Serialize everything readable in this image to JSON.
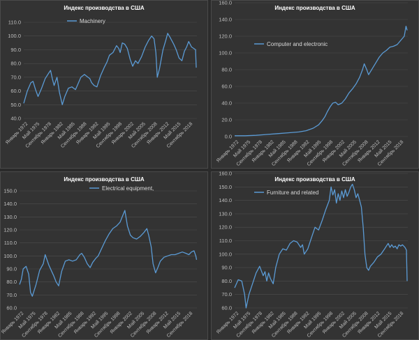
{
  "colors": {
    "background": "#2b2b2b",
    "panel": "#333333",
    "series": "#5b9bd5"
  },
  "chart_data": [
    {
      "type": "line",
      "title": "Индекс производства в США",
      "series": [
        {
          "name": "Machinery"
        }
      ],
      "ylim": [
        40,
        110
      ],
      "y_ticks": [
        "40.0",
        "50.0",
        "60.0",
        "70.0",
        "80.0",
        "90.0",
        "100.0",
        "110.0"
      ],
      "x_labels": [
        "Январь 1972",
        "Май 1975",
        "Сентябрь 1978",
        "Январь 1982",
        "Май 1985",
        "Сентябрь 1988",
        "Январь 1992",
        "Май 1995",
        "Сентябрь 1998",
        "Январь 2002",
        "Май 2005",
        "Сентябрь 2008",
        "Январь 2012",
        "Май 2015",
        "Сентябрь 2018"
      ],
      "x": [
        1972.0,
        1973.0,
        1974.0,
        1974.6,
        1975.3,
        1976.0,
        1977.0,
        1978.0,
        1979.0,
        1979.5,
        1980.0,
        1980.5,
        1981.3,
        1982.0,
        1982.8,
        1983.5,
        1984.5,
        1985.5,
        1986.5,
        1987.0,
        1988.0,
        1989.0,
        1990.0,
        1990.5,
        1991.0,
        1991.7,
        1992.5,
        1993.5,
        1994.5,
        1995.3,
        1996.0,
        1997.0,
        1998.0,
        1998.6,
        1999.0,
        1999.6,
        2000.3,
        2001.0,
        2001.8,
        2002.5,
        2003.3,
        2004.0,
        2005.0,
        2006.0,
        2007.0,
        2007.8,
        2008.5,
        2009.0,
        2009.4,
        2010.0,
        2011.0,
        2011.8,
        2012.3,
        2013.0,
        2014.0,
        2014.7,
        2015.5,
        2016.3,
        2017.0,
        2017.6,
        2018.2,
        2019.0,
        2019.6,
        2020.1,
        2020.3
      ],
      "values": [
        51,
        60,
        66,
        67,
        61,
        56,
        62,
        69,
        73,
        75,
        69,
        64,
        70,
        59,
        50,
        56,
        62,
        63,
        61,
        64,
        70,
        72,
        70,
        69,
        66,
        64,
        63,
        71,
        77,
        81,
        86,
        88,
        93,
        91,
        88,
        95,
        94,
        91,
        83,
        78,
        82,
        80,
        85,
        92,
        97,
        100,
        98,
        88,
        70,
        76,
        90,
        97,
        102,
        99,
        94,
        90,
        84,
        82,
        89,
        92,
        96,
        92,
        91,
        90,
        77
      ]
    },
    {
      "type": "line",
      "title": "Индекс производства в США",
      "series": [
        {
          "name": "Computer and electronic"
        }
      ],
      "ylim": [
        0,
        160
      ],
      "y_ticks": [
        "0.0",
        "20.0",
        "40.0",
        "60.0",
        "80.0",
        "100.0",
        "120.0",
        "140.0",
        "160.0"
      ],
      "x_labels": [
        "Январь 1972",
        "Май 1975",
        "Сентябрь 1978",
        "Январь 1982",
        "Май 1985",
        "Сентябрь 1988",
        "Январь 1992",
        "Май 1995",
        "Сентябрь 1998",
        "Январь 2002",
        "Май 2005",
        "Сентябрь 2008",
        "Январь 2012",
        "Май 2015",
        "Сентябрь 2018"
      ],
      "x": [
        1972,
        1975,
        1978,
        1981,
        1984,
        1987,
        1990,
        1992,
        1994,
        1995.5,
        1996.5,
        1997.3,
        1998,
        1998.8,
        1999.5,
        2000.3,
        2001,
        2002,
        2003,
        2004,
        2005,
        2006,
        2007,
        2007.8,
        2008.3,
        2009,
        2009.5,
        2010.5,
        2011.5,
        2012.5,
        2013.5,
        2014.5,
        2015.5,
        2016.5,
        2017.5,
        2018.5,
        2019.5,
        2020,
        2020.3
      ],
      "values": [
        1,
        1,
        1.5,
        2.5,
        3.5,
        4.5,
        5.5,
        7,
        10,
        14,
        19,
        24,
        30,
        36,
        40,
        41,
        38,
        40,
        45,
        52,
        57,
        63,
        71,
        80,
        87,
        80,
        74,
        81,
        88,
        95,
        100,
        103,
        107,
        108,
        110,
        115,
        120,
        132,
        127
      ]
    },
    {
      "type": "line",
      "title": "Индекс производства в США",
      "series": [
        {
          "name": "Electrical equipment,"
        }
      ],
      "ylim": [
        60,
        150
      ],
      "y_ticks": [
        "60.0",
        "70.0",
        "80.0",
        "90.0",
        "100.0",
        "110.0",
        "120.0",
        "130.0",
        "140.0",
        "150.0"
      ],
      "x_labels": [
        "Январь 1972",
        "Май 1975",
        "Сентябрь 1978",
        "Январь 1982",
        "Май 1985",
        "Сентябрь 1988",
        "Январь 1992",
        "Май 1995",
        "Сентябрь 1998",
        "Январь 2002",
        "Май 2005",
        "Сентябрь 2008",
        "Январь 2012",
        "Май 2015",
        "Сентябрь 2018"
      ],
      "x": [
        1972.0,
        1972.5,
        1973.0,
        1973.8,
        1974.5,
        1975.0,
        1975.5,
        1976.5,
        1977.5,
        1978.5,
        1979.0,
        1979.5,
        1980.0,
        1980.8,
        1981.3,
        1982.0,
        1982.7,
        1983.5,
        1984.5,
        1985.5,
        1986.5,
        1987.5,
        1988.5,
        1989.0,
        1989.7,
        1990.5,
        1991.3,
        1992.0,
        1992.8,
        1993.5,
        1994.5,
        1995.5,
        1996.5,
        1997.5,
        1998.5,
        1999.5,
        2000.2,
        2000.8,
        2001.5,
        2002.3,
        2003.0,
        2004.0,
        2005.0,
        2006.0,
        2006.8,
        2007.3,
        2008.0,
        2008.5,
        2009.2,
        2009.8,
        2010.5,
        2011.5,
        2012.5,
        2013.5,
        2014.5,
        2015.5,
        2016.5,
        2017.5,
        2018.3,
        2019.0,
        2019.7,
        2020.2,
        2020.4
      ],
      "values": [
        78,
        82,
        90,
        92,
        86,
        72,
        69,
        78,
        89,
        94,
        101,
        97,
        93,
        88,
        85,
        80,
        77,
        88,
        96,
        97,
        96,
        97,
        101,
        102,
        99,
        94,
        91,
        95,
        98,
        100,
        106,
        112,
        117,
        121,
        123,
        126,
        131,
        135,
        123,
        116,
        114,
        113,
        115,
        118,
        121,
        116,
        107,
        94,
        87,
        91,
        96,
        99,
        100,
        101,
        101,
        102,
        103,
        102,
        101,
        103,
        104,
        100,
        97
      ]
    },
    {
      "type": "line",
      "title": "Индекс производства в США",
      "series": [
        {
          "name": "Furniture and related"
        }
      ],
      "ylim": [
        60,
        160
      ],
      "y_ticks": [
        "60.0",
        "70.0",
        "80.0",
        "90.0",
        "100.0",
        "110.0",
        "120.0",
        "130.0",
        "140.0",
        "150.0",
        "160.0"
      ],
      "x_labels": [
        "Январь 1972",
        "Май 1975",
        "Сентябрь 1978",
        "Январь 1982",
        "Май 1985",
        "Сентябрь 1988",
        "Январь 1992",
        "Май 1995",
        "Сентябрь 1998",
        "Январь 2002",
        "Май 2005",
        "Сентябрь 2008",
        "Январь 2012",
        "Май 2015",
        "Сентябрь 2018"
      ],
      "x": [
        1972.0,
        1973.0,
        1974.0,
        1974.8,
        1975.2,
        1976.0,
        1977.0,
        1978.0,
        1979.0,
        1980.0,
        1980.5,
        1981.0,
        1981.5,
        1982.0,
        1982.8,
        1983.5,
        1984.5,
        1985.5,
        1986.5,
        1987.5,
        1988.5,
        1989.5,
        1990.5,
        1991.0,
        1991.5,
        1992.5,
        1993.5,
        1994.5,
        1995.5,
        1996.5,
        1997.5,
        1998.5,
        1999.0,
        1999.5,
        2000.0,
        2000.5,
        2001.0,
        2001.5,
        2002.0,
        2002.5,
        2003.0,
        2003.5,
        2004.0,
        2004.5,
        2005.0,
        2005.5,
        2006.0,
        2006.5,
        2007.0,
        2007.5,
        2008.0,
        2008.5,
        2009.0,
        2009.5,
        2010.0,
        2011.0,
        2012.0,
        2013.0,
        2014.0,
        2014.5,
        2015.0,
        2015.5,
        2016.0,
        2016.5,
        2017.0,
        2017.5,
        2018.0,
        2018.5,
        2019.0,
        2019.7,
        2020.1,
        2020.3
      ],
      "values": [
        75,
        81,
        80,
        70,
        60,
        70,
        78,
        86,
        91,
        84,
        87,
        80,
        86,
        82,
        78,
        90,
        100,
        104,
        103,
        108,
        110,
        109,
        105,
        107,
        100,
        104,
        112,
        120,
        118,
        125,
        133,
        140,
        150,
        144,
        148,
        138,
        145,
        140,
        147,
        142,
        148,
        143,
        146,
        150,
        152,
        148,
        142,
        145,
        140,
        135,
        120,
        100,
        90,
        88,
        91,
        94,
        98,
        100,
        104,
        106,
        108,
        105,
        107,
        105,
        106,
        104,
        107,
        106,
        107,
        105,
        103,
        80
      ]
    }
  ]
}
